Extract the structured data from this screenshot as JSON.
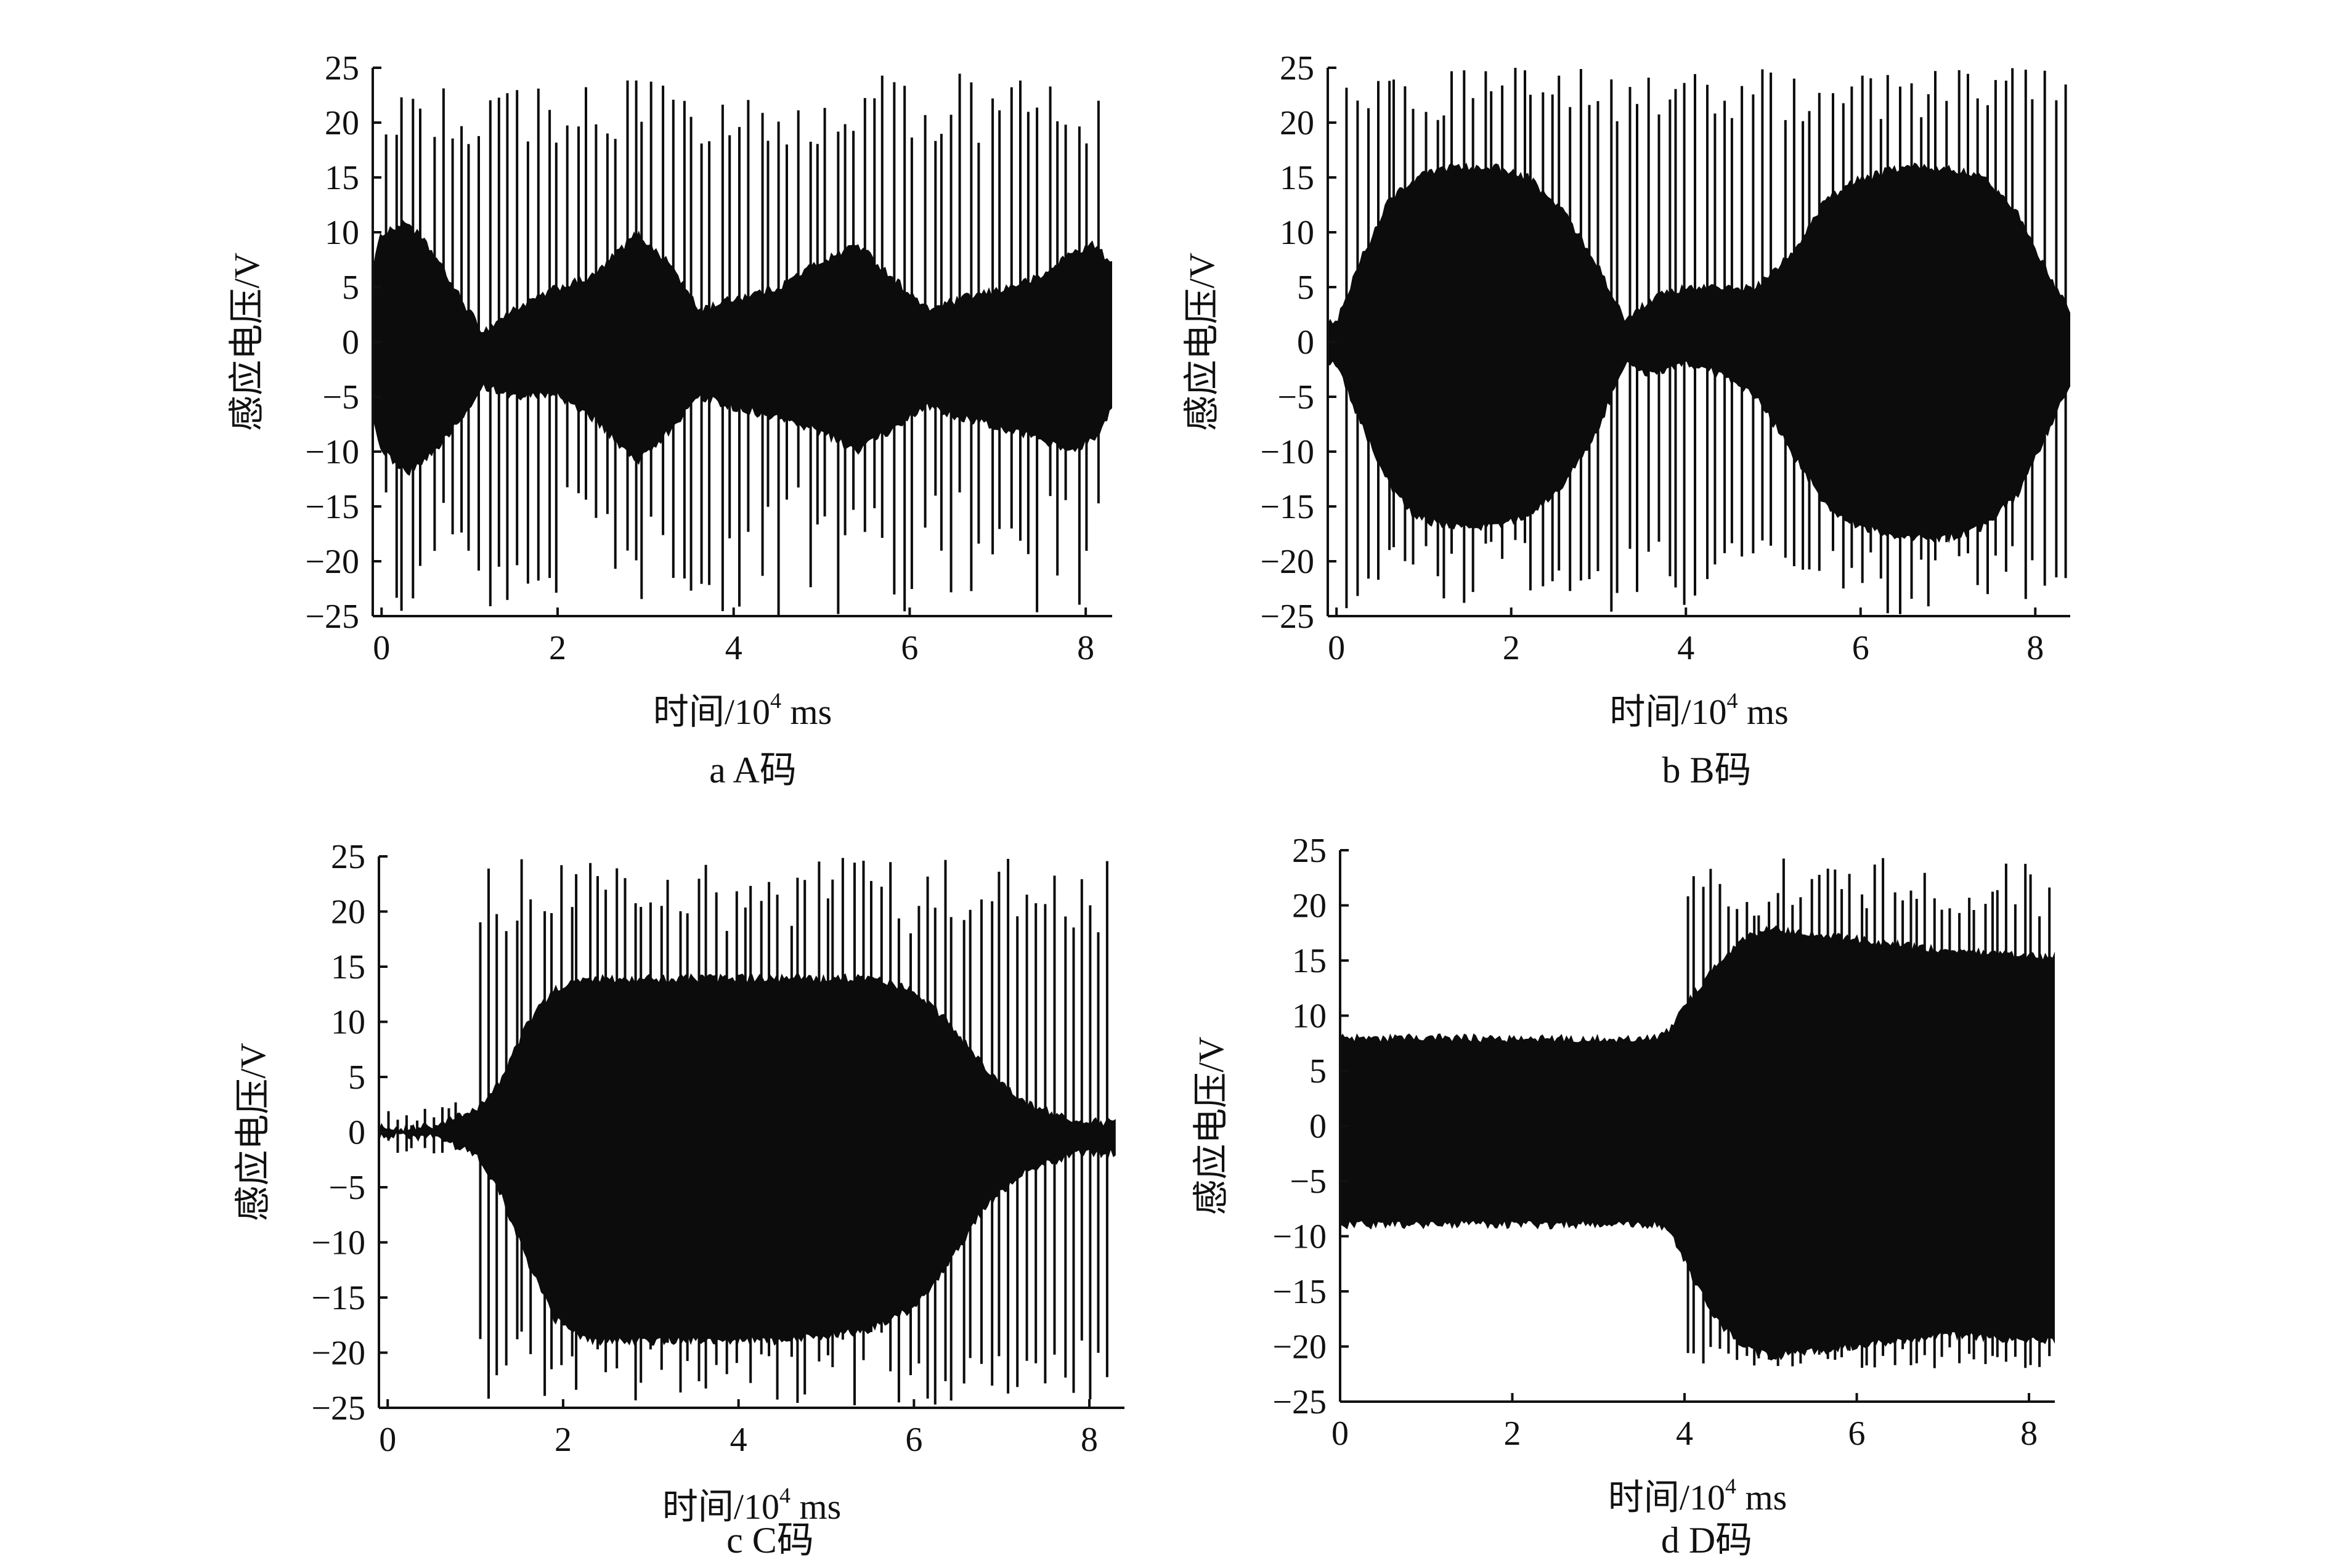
{
  "chart_data": [
    {
      "type": "line",
      "caption": "a  A码",
      "xlabel_main": "时间/10",
      "xlabel_sup": "4",
      "xlabel_unit": " ms",
      "ylabel": "感应电压/V",
      "xlim": [
        -0.1,
        8.3
      ],
      "ylim": [
        -25,
        25
      ],
      "xticks": [
        0,
        2,
        4,
        6,
        8
      ],
      "yticks": [
        25,
        20,
        15,
        10,
        5,
        0,
        -5,
        -10,
        -15,
        -20,
        -25
      ],
      "x_tick_labels": [
        "0",
        "2",
        "4",
        "6",
        "8"
      ],
      "y_tick_labels": [
        "25",
        "20",
        "15",
        "10",
        "5",
        "0",
        "−5",
        "−10",
        "−15",
        "−20",
        "−25"
      ],
      "envelope": {
        "x": [
          -0.1,
          0.0,
          0.3,
          0.6,
          0.9,
          1.15,
          1.5,
          2.0,
          2.4,
          2.9,
          3.3,
          3.6,
          4.0,
          4.5,
          4.9,
          5.4,
          5.8,
          6.2,
          6.6,
          7.1,
          7.5,
          7.8,
          8.1,
          8.3
        ],
        "upper": [
          7,
          10,
          11,
          8,
          4,
          1,
          3,
          5,
          6,
          10,
          7,
          3,
          4,
          5,
          7,
          9,
          6,
          3,
          4,
          5,
          6,
          8,
          9,
          7
        ],
        "lower": [
          -7,
          -10,
          -12,
          -10,
          -7,
          -4,
          -5,
          -5,
          -7,
          -11,
          -8,
          -5,
          -6,
          -7,
          -8,
          -10,
          -8,
          -6,
          -7,
          -8,
          -9,
          -10,
          -9,
          -6
        ]
      },
      "spikes": {
        "count": 75,
        "start": 0.0,
        "end": 8.2,
        "high_min": 18,
        "high_max": 24.5,
        "low_min": -13,
        "low_max": -25
      }
    },
    {
      "type": "line",
      "caption": "b  B码",
      "xlabel_main": "时间/10",
      "xlabel_sup": "4",
      "xlabel_unit": " ms",
      "ylabel": "感应电压/V",
      "xlim": [
        -0.1,
        8.4
      ],
      "ylim": [
        -25,
        25
      ],
      "xticks": [
        0,
        2,
        4,
        6,
        8
      ],
      "yticks": [
        25,
        20,
        15,
        10,
        5,
        0,
        -5,
        -10,
        -15,
        -20,
        -25
      ],
      "x_tick_labels": [
        "0",
        "2",
        "4",
        "6",
        "8"
      ],
      "y_tick_labels": [
        "25",
        "20",
        "15",
        "10",
        "5",
        "0",
        "−5",
        "−10",
        "−15",
        "−20",
        "−25"
      ],
      "envelope": {
        "x": [
          -0.1,
          0.0,
          0.3,
          0.6,
          0.9,
          1.3,
          1.8,
          2.2,
          2.6,
          3.0,
          3.3,
          3.6,
          4.0,
          4.4,
          4.8,
          5.2,
          5.6,
          6.0,
          6.5,
          7.0,
          7.4,
          7.8,
          8.1,
          8.4
        ],
        "upper": [
          2,
          2,
          8,
          13,
          15,
          16,
          16,
          15,
          12,
          7,
          2,
          4,
          5,
          5,
          5,
          8,
          13,
          15,
          16,
          16,
          15,
          12,
          7,
          3
        ],
        "lower": [
          -2,
          -2,
          -8,
          -13,
          -16,
          -17,
          -17,
          -16,
          -13,
          -8,
          -2,
          -3,
          -2,
          -3,
          -5,
          -10,
          -15,
          -17,
          -18,
          -18,
          -17,
          -14,
          -9,
          -4
        ]
      },
      "spikes": {
        "count": 75,
        "start": 0.1,
        "end": 8.4,
        "high_min": 20,
        "high_max": 25,
        "low_min": -18,
        "low_max": -25
      }
    },
    {
      "type": "line",
      "caption": "c  C码",
      "xlabel_main": "时间/10",
      "xlabel_sup": "4",
      "xlabel_unit": " ms",
      "ylabel": "感应电压/V",
      "xlim": [
        -0.1,
        8.4
      ],
      "ylim": [
        -25,
        25
      ],
      "xticks": [
        0,
        2,
        4,
        6,
        8
      ],
      "yticks": [
        25,
        20,
        15,
        10,
        5,
        0,
        -5,
        -10,
        -15,
        -20,
        -25
      ],
      "x_tick_labels": [
        "0",
        "2",
        "4",
        "6",
        "8"
      ],
      "y_tick_labels": [
        "25",
        "20",
        "15",
        "10",
        "5",
        "0",
        "−5",
        "−10",
        "−15",
        "−20",
        "−25"
      ],
      "envelope": {
        "x": [
          -0.1,
          0.0,
          0.5,
          1.0,
          1.3,
          1.6,
          1.9,
          2.3,
          2.8,
          3.5,
          4.5,
          5.5,
          6.0,
          6.4,
          6.8,
          7.2,
          7.5,
          7.8,
          8.0,
          8.2,
          8.3
        ],
        "upper": [
          0.5,
          0.5,
          0.5,
          2,
          5,
          10,
          13,
          14,
          14,
          14,
          14,
          14,
          13,
          10,
          6,
          3,
          2,
          1,
          1,
          1,
          1
        ],
        "lower": [
          -0.5,
          -0.5,
          -0.5,
          -2,
          -6,
          -12,
          -17,
          -19,
          -19,
          -19,
          -19,
          -18,
          -16,
          -12,
          -7,
          -4,
          -3,
          -2,
          -2,
          -2,
          -2
        ]
      },
      "spikes": {
        "count": 70,
        "start": 1.0,
        "end": 8.3,
        "high_min": 18,
        "high_max": 25,
        "low_min": -18,
        "low_max": -25
      },
      "early_spikes": {
        "count": 12,
        "start": 0.0,
        "end": 1.0,
        "high_min": 0.5,
        "high_max": 3,
        "low_min": -0.5,
        "low_max": -2
      }
    },
    {
      "type": "line",
      "caption": "d  D码",
      "xlabel_main": "时间/10",
      "xlabel_sup": "4",
      "xlabel_unit": " ms",
      "ylabel": "感应电压/V",
      "xlim": [
        0,
        8.3
      ],
      "ylim": [
        -25,
        25
      ],
      "xticks": [
        0,
        2,
        4,
        6,
        8
      ],
      "yticks": [
        25,
        20,
        15,
        10,
        5,
        0,
        -5,
        -10,
        -15,
        -20,
        -25
      ],
      "x_tick_labels": [
        "0",
        "2",
        "4",
        "6",
        "8"
      ],
      "y_tick_labels": [
        "25",
        "20",
        "15",
        "10",
        "5",
        "0",
        "−5",
        "−10",
        "−15",
        "−20",
        "−25"
      ],
      "envelope": {
        "x": [
          0.0,
          1.0,
          2.0,
          3.0,
          3.7,
          3.85,
          4.1,
          4.4,
          4.7,
          5.0,
          6.0,
          7.0,
          8.0,
          8.3
        ],
        "upper": [
          8,
          8,
          8,
          8,
          8,
          9,
          12,
          15,
          17,
          18,
          17,
          16,
          15.5,
          15.5
        ],
        "lower": [
          -9,
          -9,
          -9,
          -9,
          -9,
          -10,
          -14,
          -18,
          -20,
          -21,
          -20,
          -19,
          -19.5,
          -19.5
        ]
      },
      "spikes": {
        "count": 45,
        "start": 4.0,
        "end": 8.3,
        "high_min": 19,
        "high_max": 24.5,
        "low_min": -20,
        "low_max": -22
      }
    }
  ]
}
